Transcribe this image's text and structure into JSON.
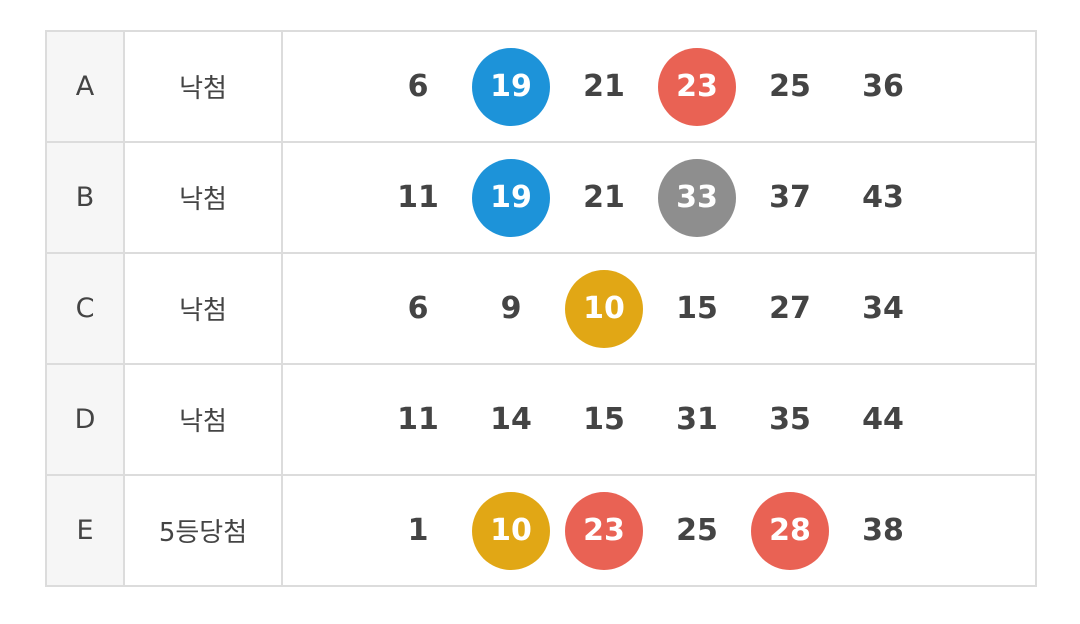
{
  "colors": {
    "blue": "#1d93d9",
    "red": "#e96254",
    "gray": "#8e8e8e",
    "yellow": "#e1a715"
  },
  "rows": [
    {
      "label": "A",
      "result": "낙첨",
      "numbers": [
        {
          "value": "6",
          "ball": null
        },
        {
          "value": "19",
          "ball": "blue"
        },
        {
          "value": "21",
          "ball": null
        },
        {
          "value": "23",
          "ball": "red"
        },
        {
          "value": "25",
          "ball": null
        },
        {
          "value": "36",
          "ball": null
        }
      ]
    },
    {
      "label": "B",
      "result": "낙첨",
      "numbers": [
        {
          "value": "11",
          "ball": null
        },
        {
          "value": "19",
          "ball": "blue"
        },
        {
          "value": "21",
          "ball": null
        },
        {
          "value": "33",
          "ball": "gray"
        },
        {
          "value": "37",
          "ball": null
        },
        {
          "value": "43",
          "ball": null
        }
      ]
    },
    {
      "label": "C",
      "result": "낙첨",
      "numbers": [
        {
          "value": "6",
          "ball": null
        },
        {
          "value": "9",
          "ball": null
        },
        {
          "value": "10",
          "ball": "yellow"
        },
        {
          "value": "15",
          "ball": null
        },
        {
          "value": "27",
          "ball": null
        },
        {
          "value": "34",
          "ball": null
        }
      ]
    },
    {
      "label": "D",
      "result": "낙첨",
      "numbers": [
        {
          "value": "11",
          "ball": null
        },
        {
          "value": "14",
          "ball": null
        },
        {
          "value": "15",
          "ball": null
        },
        {
          "value": "31",
          "ball": null
        },
        {
          "value": "35",
          "ball": null
        },
        {
          "value": "44",
          "ball": null
        }
      ]
    },
    {
      "label": "E",
      "result": "5등당첨",
      "numbers": [
        {
          "value": "1",
          "ball": null
        },
        {
          "value": "10",
          "ball": "yellow"
        },
        {
          "value": "23",
          "ball": "red"
        },
        {
          "value": "25",
          "ball": null
        },
        {
          "value": "28",
          "ball": "red"
        },
        {
          "value": "38",
          "ball": null
        }
      ]
    }
  ]
}
